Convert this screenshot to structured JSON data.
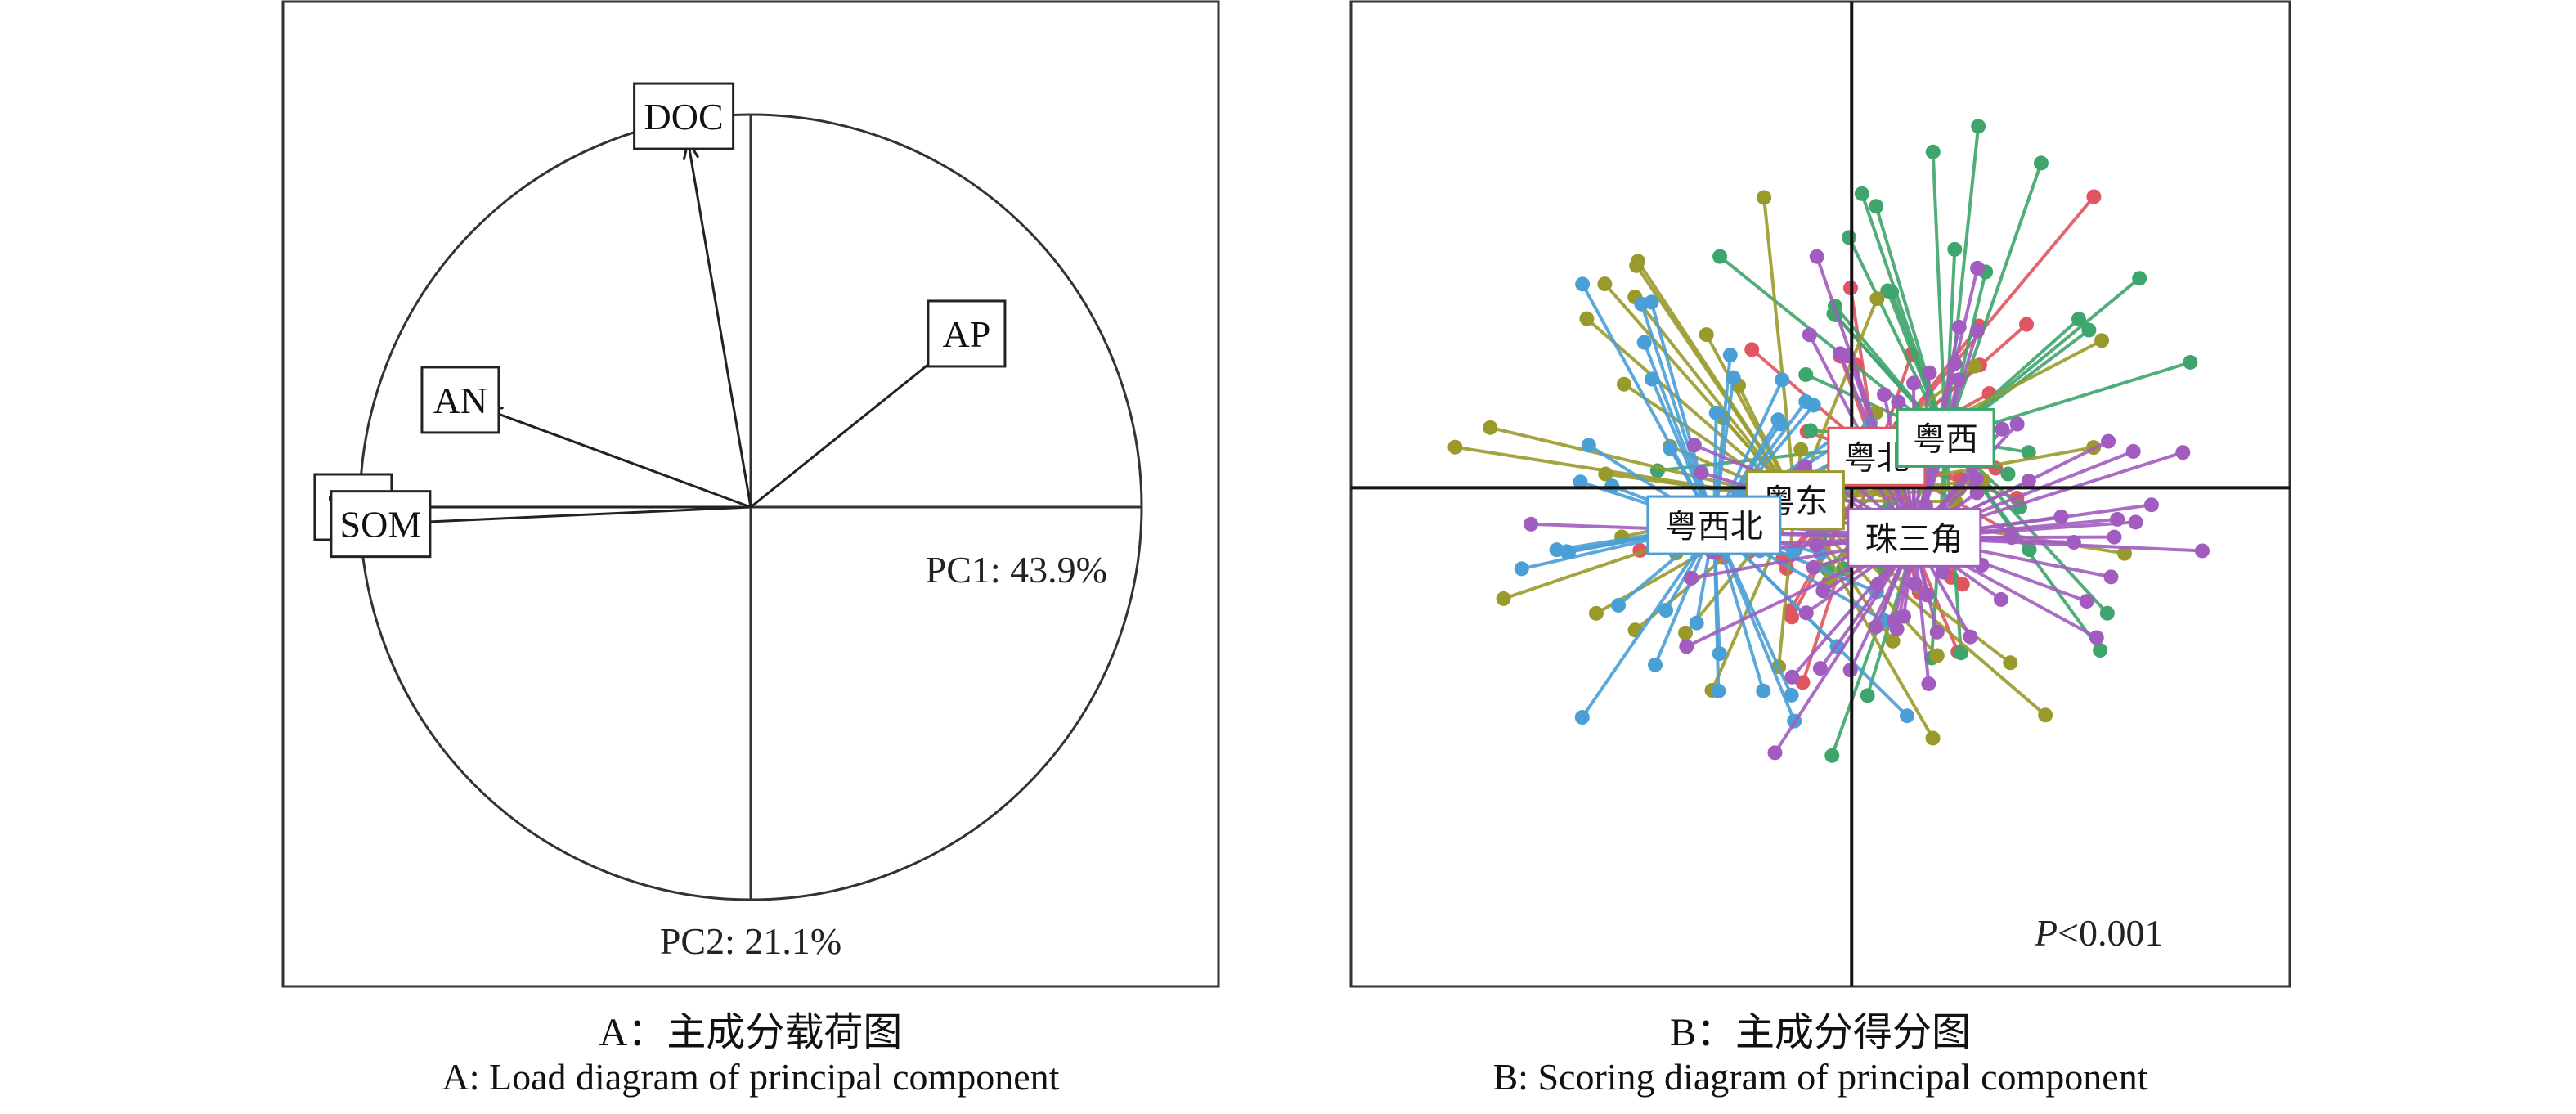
{
  "chart_data": [
    {
      "type": "pca-loading",
      "caption_zh": "A：主成分载荷图",
      "caption_en": "A: Load diagram of principal component",
      "pc1_label": "PC1: 43.9%",
      "pc2_label": "PC2: 21.1%",
      "axes": {
        "x": [
          -1.0,
          1.0
        ],
        "y": [
          -1.0,
          1.0
        ]
      },
      "loadings": [
        {
          "variable": "DOC",
          "pc1": -0.16,
          "pc2": 0.93
        },
        {
          "variable": "AP",
          "pc1": 0.5,
          "pc2": 0.4
        },
        {
          "variable": "AN",
          "pc1": -0.68,
          "pc2": 0.25
        },
        {
          "variable": "TN",
          "pc1": -0.95,
          "pc2": 0.0
        },
        {
          "variable": "SOM",
          "pc1": -0.88,
          "pc2": -0.04
        }
      ]
    },
    {
      "type": "pca-score",
      "caption_zh": "B：主成分得分图",
      "caption_en": "B: Scoring diagram of principal component",
      "p_prefix": "P",
      "p_suffix": "<0.001",
      "axes": {
        "x": [
          -4.0,
          3.5
        ],
        "y": [
          -4.0,
          3.9
        ]
      },
      "groups": [
        {
          "name": "粤北",
          "color": "#e0555f",
          "centroid": [
            0.2,
            0.25
          ],
          "spread": [
            0.75,
            1.05
          ],
          "n": 42,
          "seed": 11
        },
        {
          "name": "粤西",
          "color": "#3ea56c",
          "centroid": [
            0.75,
            0.4
          ],
          "spread": [
            0.85,
            1.0
          ],
          "n": 46,
          "seed": 23
        },
        {
          "name": "粤东",
          "color": "#9a9a2c",
          "centroid": [
            -0.45,
            -0.1
          ],
          "spread": [
            1.15,
            1.0
          ],
          "n": 42,
          "seed": 37
        },
        {
          "name": "粤西北",
          "color": "#4a9fd6",
          "centroid": [
            -1.1,
            -0.3
          ],
          "spread": [
            1.0,
            1.05
          ],
          "n": 48,
          "seed": 51
        },
        {
          "name": "珠三角",
          "color": "#a25cc0",
          "centroid": [
            0.5,
            -0.4
          ],
          "spread": [
            1.05,
            0.85
          ],
          "n": 76,
          "seed": 67
        }
      ]
    }
  ]
}
